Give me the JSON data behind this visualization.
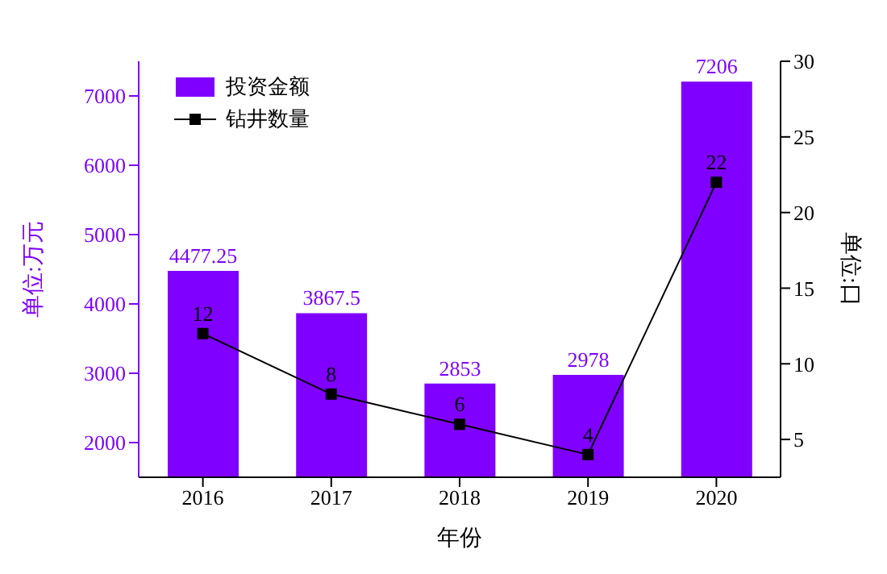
{
  "chart_data": {
    "type": "bar",
    "categories": [
      "2016",
      "2017",
      "2018",
      "2019",
      "2020"
    ],
    "xlabel": "年份",
    "ylabel": "单位:万元",
    "y2label": "单位:口",
    "series": [
      {
        "name": "投资金额",
        "color": "#7f00ff",
        "values": [
          4477.25,
          3867.5,
          2853,
          2978,
          7206
        ]
      },
      {
        "name": "钻井数量",
        "type": "line",
        "axis": "y2",
        "color": "#000000",
        "marker": "square",
        "values": [
          12,
          8,
          6,
          4,
          22
        ]
      }
    ],
    "ylim": [
      1500,
      7500
    ],
    "yticks": [
      2000,
      3000,
      4000,
      5000,
      6000,
      7000
    ],
    "y2lim": [
      2.5,
      30
    ],
    "y2ticks": [
      5,
      10,
      15,
      20,
      25,
      30
    ],
    "data_labels": true,
    "legend": "top left"
  }
}
